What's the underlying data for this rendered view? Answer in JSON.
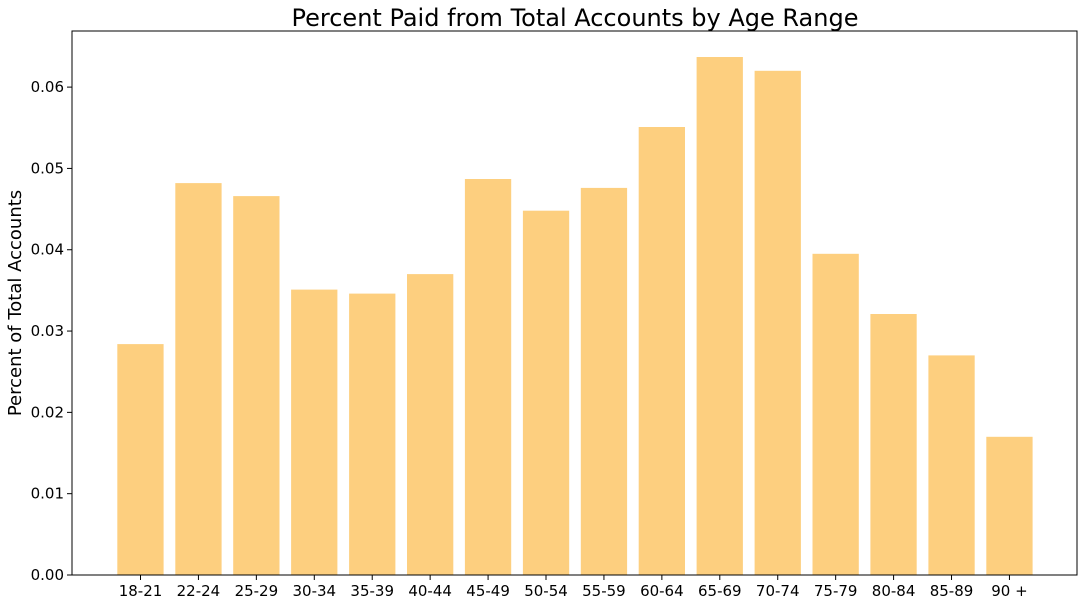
{
  "chart_data": {
    "type": "bar",
    "title": "Percent Paid from Total Accounts by Age Range",
    "xlabel": "",
    "ylabel": "Percent of Total Accounts",
    "categories": [
      "18-21",
      "22-24",
      "25-29",
      "30-34",
      "35-39",
      "40-44",
      "45-49",
      "50-54",
      "55-59",
      "60-64",
      "65-69",
      "70-74",
      "75-79",
      "80-84",
      "85-89",
      "90 +"
    ],
    "values": [
      0.0284,
      0.0482,
      0.0466,
      0.0351,
      0.0346,
      0.037,
      0.0487,
      0.0448,
      0.0476,
      0.0551,
      0.0637,
      0.062,
      0.0395,
      0.0321,
      0.027,
      0.017
    ],
    "ylim": [
      0,
      0.0669
    ],
    "yticks": [
      0.0,
      0.01,
      0.02,
      0.03,
      0.04,
      0.05,
      0.06
    ],
    "ytick_labels": [
      "0.00",
      "0.01",
      "0.02",
      "0.03",
      "0.04",
      "0.05",
      "0.06"
    ],
    "grid": false,
    "bar_color": "#fdcf7f"
  }
}
